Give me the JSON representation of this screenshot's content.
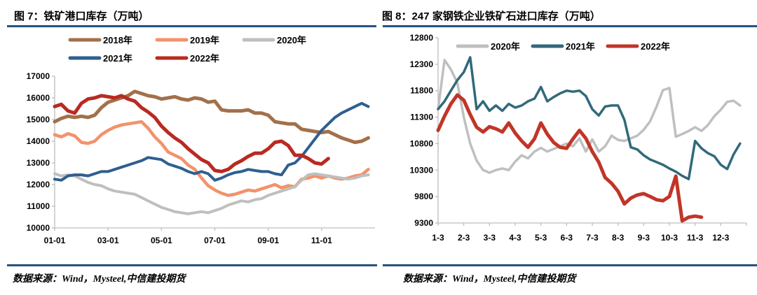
{
  "sources": [
    "数据来源：Wind，Mysteel,中信建投期货",
    "数据来源：Wind，Mysteel,中信建投期货"
  ],
  "chart_data": [
    {
      "type": "line",
      "title": "图 7：铁矿港口库存（万吨）",
      "xlabel": "",
      "ylabel": "万吨",
      "ylim": [
        10000,
        17000
      ],
      "yticks": [
        10000,
        11000,
        12000,
        13000,
        14000,
        15000,
        16000,
        17000
      ],
      "x_months": 12,
      "points_per_month": 4,
      "grid": false,
      "legend_position": "top-outside",
      "legend_rows": [
        [
          0,
          1,
          2
        ],
        [
          3,
          4
        ]
      ],
      "xticks": [
        {
          "m": 0,
          "label": "01-01"
        },
        {
          "m": 2,
          "label": "03-01"
        },
        {
          "m": 4,
          "label": "05-01"
        },
        {
          "m": 6,
          "label": "07-01"
        },
        {
          "m": 8,
          "label": "09-01"
        },
        {
          "m": 10,
          "label": "11-01"
        }
      ],
      "series": [
        {
          "name": "2018年",
          "color": "#a3704a",
          "width": 5,
          "values": [
            14900,
            15050,
            15150,
            15100,
            15150,
            15100,
            15200,
            15550,
            15800,
            15900,
            16000,
            16100,
            16300,
            16200,
            16100,
            16050,
            15950,
            16000,
            16050,
            15950,
            15900,
            16000,
            15950,
            15800,
            15850,
            15450,
            15400,
            15400,
            15400,
            15450,
            15300,
            15300,
            15200,
            14900,
            14850,
            14800,
            14800,
            14550,
            14500,
            14450,
            14400,
            14450,
            14300,
            14150,
            14050,
            13950,
            14000,
            14150
          ]
        },
        {
          "name": "2019年",
          "color": "#f2926b",
          "width": 4.5,
          "values": [
            14300,
            14200,
            14350,
            14250,
            13950,
            13900,
            14000,
            14300,
            14500,
            14650,
            14750,
            14800,
            14850,
            14900,
            14600,
            14200,
            13900,
            13500,
            13350,
            13200,
            12900,
            12700,
            12300,
            11950,
            11750,
            11600,
            11500,
            11550,
            11650,
            11750,
            11700,
            11800,
            11900,
            12000,
            11850,
            11950,
            11900,
            12250,
            12300,
            12400,
            12300,
            12400,
            12300,
            12250,
            12300,
            12400,
            12450,
            12700
          ]
        },
        {
          "name": "2020年",
          "color": "#bfbfbf",
          "width": 4,
          "values": [
            12500,
            12400,
            12450,
            12400,
            12250,
            12100,
            12000,
            11950,
            11800,
            11700,
            11650,
            11600,
            11550,
            11400,
            11250,
            11100,
            10950,
            10850,
            10750,
            10700,
            10650,
            10700,
            10750,
            10700,
            10800,
            10900,
            11050,
            11150,
            11250,
            11200,
            11300,
            11350,
            11500,
            11600,
            11700,
            11800,
            11900,
            12200,
            12450,
            12500,
            12450,
            12400,
            12350,
            12300,
            12250,
            12300,
            12400,
            12450
          ]
        },
        {
          "name": "2021年",
          "color": "#2e5f8f",
          "width": 4,
          "values": [
            12250,
            12200,
            12400,
            12450,
            12450,
            12400,
            12500,
            12600,
            12600,
            12700,
            12800,
            12900,
            13000,
            13100,
            13250,
            13200,
            13150,
            12950,
            12850,
            12750,
            12600,
            12500,
            12600,
            12500,
            12200,
            12300,
            12450,
            12550,
            12600,
            12700,
            12650,
            12600,
            12600,
            12500,
            12450,
            12900,
            13000,
            13300,
            13700,
            14100,
            14500,
            14800,
            15100,
            15300,
            15450,
            15600,
            15750,
            15600
          ]
        },
        {
          "name": "2022年",
          "color": "#b92a21",
          "width": 5,
          "values": [
            15600,
            15700,
            15400,
            15300,
            15750,
            15950,
            16000,
            16100,
            16050,
            16000,
            16100,
            15950,
            15850,
            15550,
            15350,
            15100,
            14700,
            14400,
            14150,
            13950,
            13650,
            13400,
            13150,
            13000,
            12650,
            12600,
            12700,
            12950,
            13100,
            13300,
            13450,
            13450,
            13650,
            13950,
            14000,
            13800,
            13350,
            13350,
            13200,
            13000,
            12950,
            13200
          ]
        }
      ]
    },
    {
      "type": "line",
      "title": "图 8：247 家钢铁企业铁矿石进口库存（万吨）",
      "xlabel": "",
      "ylabel": "万吨",
      "ylim": [
        9300,
        12800
      ],
      "yticks": [
        9300,
        9800,
        10300,
        10800,
        11300,
        11800,
        12300,
        12800
      ],
      "x_months": 12,
      "points_per_month": 4,
      "grid": false,
      "legend_position": "top-inside",
      "legend_rows": [
        [
          0,
          1,
          2
        ]
      ],
      "xticks": [
        {
          "m": 0,
          "label": "1-3"
        },
        {
          "m": 1,
          "label": "2-3"
        },
        {
          "m": 2,
          "label": "3-3"
        },
        {
          "m": 3,
          "label": "4-3"
        },
        {
          "m": 4,
          "label": "5-3"
        },
        {
          "m": 5,
          "label": "6-3"
        },
        {
          "m": 6,
          "label": "7-3"
        },
        {
          "m": 7,
          "label": "8-3"
        },
        {
          "m": 8,
          "label": "9-3"
        },
        {
          "m": 9,
          "label": "10-3"
        },
        {
          "m": 10,
          "label": "11-3"
        },
        {
          "m": 11,
          "label": "12-3"
        }
      ],
      "series": [
        {
          "name": "2020年",
          "color": "#bfbfbf",
          "width": 3.5,
          "values": [
            11450,
            12380,
            12200,
            11950,
            11300,
            10800,
            10480,
            10300,
            10250,
            10300,
            10330,
            10300,
            10460,
            10580,
            10520,
            10650,
            10720,
            10650,
            10700,
            10750,
            10800,
            10750,
            10900,
            10650,
            10880,
            10650,
            10750,
            10950,
            10870,
            10850,
            10900,
            10950,
            11060,
            11220,
            11500,
            11810,
            11850,
            10930,
            10980,
            11040,
            11110,
            11040,
            11150,
            11320,
            11440,
            11590,
            11610,
            11520
          ]
        },
        {
          "name": "2021年",
          "color": "#31697b",
          "width": 3.5,
          "values": [
            11450,
            11600,
            11800,
            12000,
            12150,
            12430,
            11450,
            11600,
            11420,
            11520,
            11420,
            11550,
            11480,
            11520,
            11600,
            11650,
            11870,
            11600,
            11680,
            11750,
            11800,
            11780,
            11800,
            11700,
            11450,
            11330,
            11500,
            11520,
            11520,
            11250,
            10730,
            10690,
            10580,
            10500,
            10450,
            10400,
            10330,
            10270,
            10190,
            10130,
            10850,
            10710,
            10620,
            10560,
            10400,
            10320,
            10600,
            10800
          ]
        },
        {
          "name": "2022年",
          "color": "#c13528",
          "width": 5,
          "values": [
            11050,
            11320,
            11550,
            11720,
            11620,
            11350,
            11110,
            11020,
            11120,
            11080,
            11020,
            11190,
            11000,
            10850,
            10730,
            10890,
            11190,
            10980,
            10820,
            10730,
            10710,
            10890,
            11050,
            10900,
            10650,
            10450,
            10160,
            10050,
            9900,
            9660,
            9770,
            9830,
            9855,
            9800,
            9740,
            9720,
            9800,
            10185,
            9340,
            9410,
            9430,
            9410
          ]
        }
      ]
    }
  ]
}
